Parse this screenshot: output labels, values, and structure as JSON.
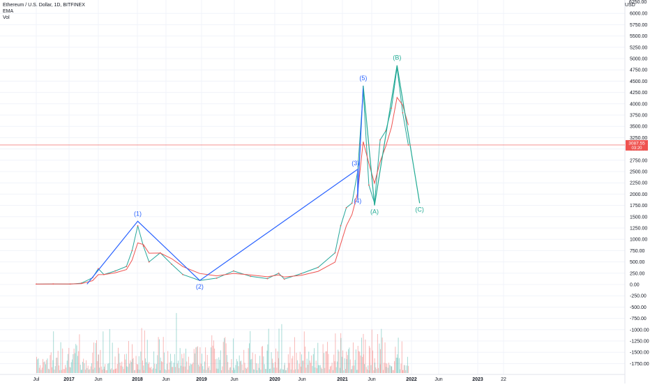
{
  "legend": {
    "symbol": "Ethereum / U.S. Dollar, 1D, BITFINEX",
    "ema": "EMA",
    "vol": "Vol"
  },
  "currency": "USD",
  "top_price_label": "6250.00",
  "last_price": {
    "value": "3087.55",
    "countdown": "03:20"
  },
  "colors": {
    "up": "#26a69a",
    "down": "#ef5350",
    "ema": "#ef5350",
    "wave_blue": "#2962ff",
    "wave_green": "#22ab94",
    "label_blue": "#2962ff",
    "label_green": "#22ab94"
  },
  "chart_data": {
    "type": "line",
    "title": "Ethereum / U.S. Dollar, 1D, BITFINEX",
    "ylim": [
      -1900,
      6250
    ],
    "price_axis_ticks": [
      "6000.00",
      "5750.00",
      "5500.00",
      "5250.00",
      "5000.00",
      "4750.00",
      "4500.00",
      "4250.00",
      "4000.00",
      "3750.00",
      "3500.00",
      "3250.00",
      "3000.00",
      "2750.00",
      "2500.00",
      "2250.00",
      "2000.00",
      "1750.00",
      "1500.00",
      "1250.00",
      "1000.00",
      "750.00",
      "500.00",
      "250.00",
      "0.00",
      "-250.00",
      "-500.00",
      "-750.00",
      "-1000.00",
      "-1250.00",
      "-1500.00",
      "-1750.00"
    ],
    "time_axis_ticks": [
      "Jul",
      "2017",
      "Jun",
      "2018",
      "Jun",
      "2019",
      "Jun",
      "2020",
      "Jun",
      "2021",
      "Jun",
      "2022",
      "Jun",
      "2023",
      "22"
    ],
    "price_series": [
      {
        "t": "2016-07",
        "v": 10
      },
      {
        "t": "2016-10",
        "v": 12
      },
      {
        "t": "2017-01",
        "v": 10
      },
      {
        "t": "2017-03",
        "v": 30
      },
      {
        "t": "2017-05",
        "v": 150
      },
      {
        "t": "2017-06",
        "v": 350
      },
      {
        "t": "2017-07",
        "v": 220
      },
      {
        "t": "2017-09",
        "v": 300
      },
      {
        "t": "2017-11",
        "v": 400
      },
      {
        "t": "2017-12",
        "v": 750
      },
      {
        "t": "2018-01",
        "v": 1300
      },
      {
        "t": "2018-02",
        "v": 850
      },
      {
        "t": "2018-03",
        "v": 500
      },
      {
        "t": "2018-05",
        "v": 700
      },
      {
        "t": "2018-07",
        "v": 450
      },
      {
        "t": "2018-09",
        "v": 220
      },
      {
        "t": "2018-12",
        "v": 90
      },
      {
        "t": "2019-03",
        "v": 140
      },
      {
        "t": "2019-06",
        "v": 300
      },
      {
        "t": "2019-09",
        "v": 180
      },
      {
        "t": "2019-12",
        "v": 130
      },
      {
        "t": "2020-02",
        "v": 250
      },
      {
        "t": "2020-03",
        "v": 120
      },
      {
        "t": "2020-06",
        "v": 240
      },
      {
        "t": "2020-09",
        "v": 380
      },
      {
        "t": "2020-12",
        "v": 700
      },
      {
        "t": "2021-01",
        "v": 1300
      },
      {
        "t": "2021-02",
        "v": 1700
      },
      {
        "t": "2021-03",
        "v": 1800
      },
      {
        "t": "2021-04",
        "v": 2500
      },
      {
        "t": "2021-05",
        "v": 4300
      },
      {
        "t": "2021-06",
        "v": 2200
      },
      {
        "t": "2021-07",
        "v": 1800
      },
      {
        "t": "2021-08",
        "v": 3200
      },
      {
        "t": "2021-09",
        "v": 3400
      },
      {
        "t": "2021-10",
        "v": 3900
      },
      {
        "t": "2021-11",
        "v": 4800
      },
      {
        "t": "2021-12",
        "v": 3800
      },
      {
        "t": "2022-01",
        "v": 3087
      }
    ],
    "volume_note": "Vol",
    "wave_count": [
      {
        "label": "(1)",
        "t": "2018-01",
        "v": 1400,
        "group": "impulse"
      },
      {
        "label": "(2)",
        "t": "2018-12",
        "v": 90,
        "group": "impulse"
      },
      {
        "label": "(3)",
        "t": "2021-04",
        "v": 2550,
        "group": "impulse"
      },
      {
        "label": "(4)",
        "t": "2021-04",
        "v": 1900,
        "group": "impulse"
      },
      {
        "label": "(5)",
        "t": "2021-05",
        "v": 4400,
        "group": "impulse"
      },
      {
        "label": "(A)",
        "t": "2021-07",
        "v": 1750,
        "group": "corrective"
      },
      {
        "label": "(B)",
        "t": "2021-11",
        "v": 4850,
        "group": "corrective"
      },
      {
        "label": "(C)",
        "t": "2022-03",
        "v": 1800,
        "group": "corrective"
      }
    ]
  }
}
